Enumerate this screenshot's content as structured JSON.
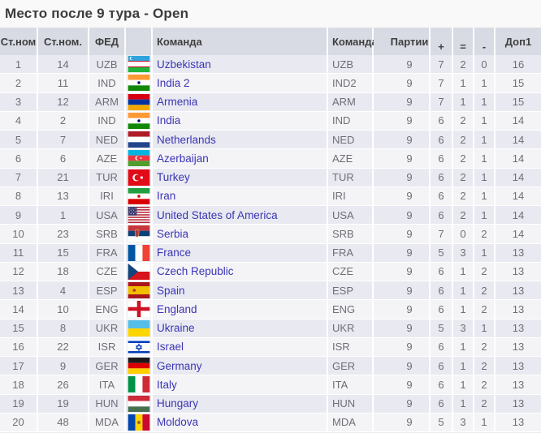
{
  "title": "Место после 9 тура - Open",
  "table": {
    "columns": [
      {
        "label": "Ст.ном"
      },
      {
        "label": "Ст.ном."
      },
      {
        "label": "ФЕД"
      },
      {
        "label": ""
      },
      {
        "label": "Команда"
      },
      {
        "label": "Команда"
      },
      {
        "label": "Партии"
      },
      {
        "label": "+"
      },
      {
        "label": "="
      },
      {
        "label": "-"
      },
      {
        "label": "Доп1"
      }
    ],
    "rows": [
      {
        "rank": "1",
        "seed": "14",
        "fed": "UZB",
        "flag": "UZB",
        "team": "Uzbekistan",
        "code": "UZB",
        "games": "9",
        "wins": "7",
        "draws": "2",
        "losses": "0",
        "tb1": "16"
      },
      {
        "rank": "2",
        "seed": "11",
        "fed": "IND",
        "flag": "IND",
        "team": "India 2",
        "code": "IND2",
        "games": "9",
        "wins": "7",
        "draws": "1",
        "losses": "1",
        "tb1": "15"
      },
      {
        "rank": "3",
        "seed": "12",
        "fed": "ARM",
        "flag": "ARM",
        "team": "Armenia",
        "code": "ARM",
        "games": "9",
        "wins": "7",
        "draws": "1",
        "losses": "1",
        "tb1": "15"
      },
      {
        "rank": "4",
        "seed": "2",
        "fed": "IND",
        "flag": "IND",
        "team": "India",
        "code": "IND",
        "games": "9",
        "wins": "6",
        "draws": "2",
        "losses": "1",
        "tb1": "14"
      },
      {
        "rank": "5",
        "seed": "7",
        "fed": "NED",
        "flag": "NED",
        "team": "Netherlands",
        "code": "NED",
        "games": "9",
        "wins": "6",
        "draws": "2",
        "losses": "1",
        "tb1": "14"
      },
      {
        "rank": "6",
        "seed": "6",
        "fed": "AZE",
        "flag": "AZE",
        "team": "Azerbaijan",
        "code": "AZE",
        "games": "9",
        "wins": "6",
        "draws": "2",
        "losses": "1",
        "tb1": "14"
      },
      {
        "rank": "7",
        "seed": "21",
        "fed": "TUR",
        "flag": "TUR",
        "team": "Turkey",
        "code": "TUR",
        "games": "9",
        "wins": "6",
        "draws": "2",
        "losses": "1",
        "tb1": "14"
      },
      {
        "rank": "8",
        "seed": "13",
        "fed": "IRI",
        "flag": "IRI",
        "team": "Iran",
        "code": "IRI",
        "games": "9",
        "wins": "6",
        "draws": "2",
        "losses": "1",
        "tb1": "14"
      },
      {
        "rank": "9",
        "seed": "1",
        "fed": "USA",
        "flag": "USA",
        "team": "United States of America",
        "code": "USA",
        "games": "9",
        "wins": "6",
        "draws": "2",
        "losses": "1",
        "tb1": "14"
      },
      {
        "rank": "10",
        "seed": "23",
        "fed": "SRB",
        "flag": "SRB",
        "team": "Serbia",
        "code": "SRB",
        "games": "9",
        "wins": "7",
        "draws": "0",
        "losses": "2",
        "tb1": "14"
      },
      {
        "rank": "11",
        "seed": "15",
        "fed": "FRA",
        "flag": "FRA",
        "team": "France",
        "code": "FRA",
        "games": "9",
        "wins": "5",
        "draws": "3",
        "losses": "1",
        "tb1": "13"
      },
      {
        "rank": "12",
        "seed": "18",
        "fed": "CZE",
        "flag": "CZE",
        "team": "Czech Republic",
        "code": "CZE",
        "games": "9",
        "wins": "6",
        "draws": "1",
        "losses": "2",
        "tb1": "13"
      },
      {
        "rank": "13",
        "seed": "4",
        "fed": "ESP",
        "flag": "ESP",
        "team": "Spain",
        "code": "ESP",
        "games": "9",
        "wins": "6",
        "draws": "1",
        "losses": "2",
        "tb1": "13"
      },
      {
        "rank": "14",
        "seed": "10",
        "fed": "ENG",
        "flag": "ENG",
        "team": "England",
        "code": "ENG",
        "games": "9",
        "wins": "6",
        "draws": "1",
        "losses": "2",
        "tb1": "13"
      },
      {
        "rank": "15",
        "seed": "8",
        "fed": "UKR",
        "flag": "UKR",
        "team": "Ukraine",
        "code": "UKR",
        "games": "9",
        "wins": "5",
        "draws": "3",
        "losses": "1",
        "tb1": "13"
      },
      {
        "rank": "16",
        "seed": "22",
        "fed": "ISR",
        "flag": "ISR",
        "team": "Israel",
        "code": "ISR",
        "games": "9",
        "wins": "6",
        "draws": "1",
        "losses": "2",
        "tb1": "13"
      },
      {
        "rank": "17",
        "seed": "9",
        "fed": "GER",
        "flag": "GER",
        "team": "Germany",
        "code": "GER",
        "games": "9",
        "wins": "6",
        "draws": "1",
        "losses": "2",
        "tb1": "13"
      },
      {
        "rank": "18",
        "seed": "26",
        "fed": "ITA",
        "flag": "ITA",
        "team": "Italy",
        "code": "ITA",
        "games": "9",
        "wins": "6",
        "draws": "1",
        "losses": "2",
        "tb1": "13"
      },
      {
        "rank": "19",
        "seed": "19",
        "fed": "HUN",
        "flag": "HUN",
        "team": "Hungary",
        "code": "HUN",
        "games": "9",
        "wins": "6",
        "draws": "1",
        "losses": "2",
        "tb1": "13"
      },
      {
        "rank": "20",
        "seed": "48",
        "fed": "MDA",
        "flag": "MDA",
        "team": "Moldova",
        "code": "MDA",
        "games": "9",
        "wins": "5",
        "draws": "3",
        "losses": "1",
        "tb1": "13"
      }
    ]
  }
}
